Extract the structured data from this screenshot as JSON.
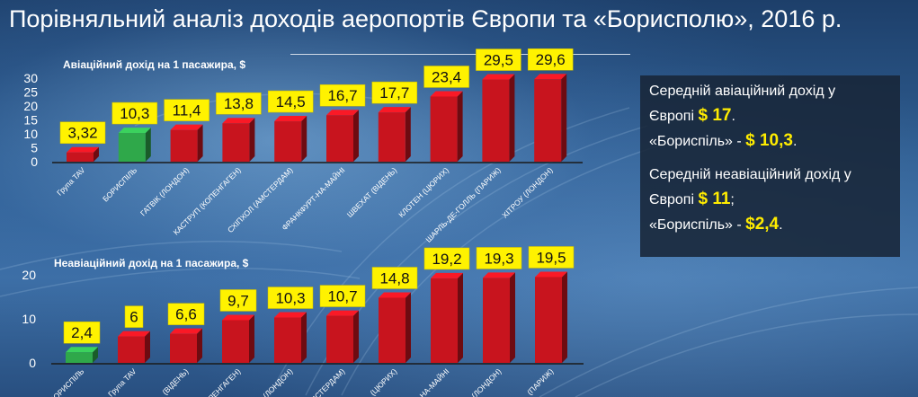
{
  "title": "Порівняльний аналіз доходів аеропортів Європи та «Борисполю», 2016 р.",
  "colors": {
    "bar": "#c8141e",
    "highlight_bar": "#2fa84a",
    "label_bg": "#fff200"
  },
  "chart_data": [
    {
      "type": "bar",
      "title": "Авіаційний дохід на 1 пасажира, $",
      "ylim": [
        0,
        30
      ],
      "yticks": [
        "0",
        "5",
        "10",
        "15",
        "20",
        "25",
        "30"
      ],
      "categories": [
        "Група TAV",
        "БОРИСПІЛЬ",
        "ГАТВІК (ЛОНДОН)",
        "КАСТРУП (КОПЕНГАГЕН)",
        "СХІПХОЛ (АМСТЕРДАМ)",
        "ФРАНКФУРТ-НА-МАЙНІ",
        "ШВЕХАТ (ВІДЕНЬ)",
        "КЛОТЕН (ЦЮРИХ)",
        "ШАРЛЬ-ДЕ-ГОЛЛЬ (ПАРИЖ)",
        "ХІТРОУ (ЛОНДОН)"
      ],
      "values": [
        3.32,
        10.3,
        11.4,
        13.8,
        14.5,
        16.7,
        17.7,
        23.4,
        29.5,
        29.6
      ],
      "value_labels": [
        "3,32",
        "10,3",
        "11,4",
        "13,8",
        "14,5",
        "16,7",
        "17,7",
        "23,4",
        "29,5",
        "29,6"
      ],
      "highlight_index": 1
    },
    {
      "type": "bar",
      "title": "Неавіаційний дохід на 1 пасажира, $",
      "ylim": [
        0,
        20
      ],
      "yticks": [
        "0",
        "10",
        "20"
      ],
      "categories": [
        "БОРИСПІЛЬ",
        "Група TAV",
        "(ВІДЕНЬ)",
        "(КОПЕНГАГЕН)",
        "(ЛОНДОН)",
        "(АМСТЕРДАМ)",
        "(ЦЮРИХ)",
        "НА-МАЙНІ",
        "(ЛОНДОН)",
        "(ПАРИЖ)"
      ],
      "values": [
        2.4,
        6,
        6.6,
        9.7,
        10.3,
        10.7,
        14.8,
        19.2,
        19.3,
        19.5
      ],
      "value_labels": [
        "2,4",
        "6",
        "6,6",
        "9,7",
        "10,3",
        "10,7",
        "14,8",
        "19,2",
        "19,3",
        "19,5"
      ],
      "highlight_index": 0
    }
  ],
  "info": {
    "aviation_line1": "Середній авіаційний дохід у",
    "aviation_europe_prefix": "Європі ",
    "aviation_europe_value": "$ 17",
    "aviation_europe_suffix": ".",
    "aviation_bor_prefix": "«Бориспіль» - ",
    "aviation_bor_value": "$ 10,3",
    "aviation_bor_suffix": ".",
    "non_aviation_line1": "Середній неавіаційний дохід  у",
    "non_aviation_europe_prefix": "Європі ",
    "non_aviation_europe_value": "$ 11",
    "non_aviation_europe_suffix": ";",
    "non_aviation_bor_prefix": " «Бориспіль» -  ",
    "non_aviation_bor_value": "$2,4",
    "non_aviation_bor_suffix": "."
  }
}
